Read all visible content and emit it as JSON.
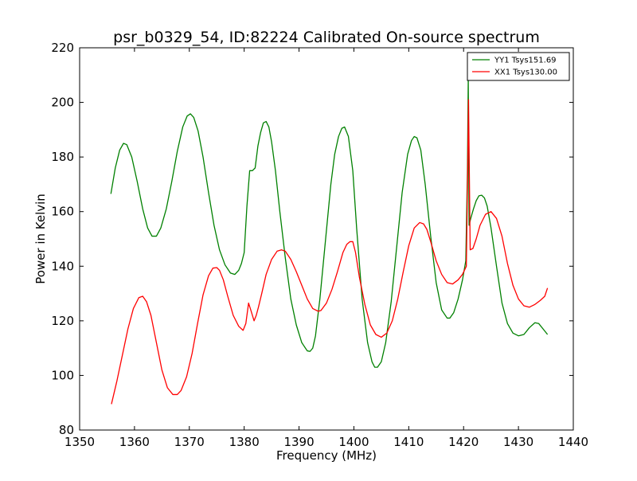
{
  "chart_data": {
    "type": "line",
    "title": "psr_b0329_54, ID:82224 Calibrated On-source spectrum",
    "xlabel": "Frequency (MHz)",
    "ylabel": "Power in Kelvin",
    "xlim": [
      1350,
      1440
    ],
    "ylim": [
      80,
      220
    ],
    "xticks": [
      1350,
      1360,
      1370,
      1380,
      1390,
      1400,
      1410,
      1420,
      1430,
      1440
    ],
    "yticks": [
      80,
      100,
      120,
      140,
      160,
      180,
      200,
      220
    ],
    "grid": false,
    "legend_position": "top-right",
    "series": [
      {
        "name": "YY1 Tsys151.69",
        "color": "#008000",
        "x": [
          1355.7,
          1356.5,
          1357.3,
          1358.0,
          1358.6,
          1359.5,
          1360.5,
          1361.5,
          1362.4,
          1363.2,
          1364.0,
          1364.8,
          1365.8,
          1366.8,
          1367.8,
          1368.8,
          1369.6,
          1370.2,
          1370.8,
          1371.6,
          1372.5,
          1373.5,
          1374.5,
          1375.5,
          1376.5,
          1377.5,
          1378.3,
          1379.0,
          1379.5,
          1380.0,
          1380.5,
          1381.0,
          1381.5,
          1382.0,
          1382.5,
          1383.0,
          1383.5,
          1384.0,
          1384.5,
          1385.0,
          1385.7,
          1386.5,
          1387.5,
          1388.5,
          1389.5,
          1390.5,
          1391.5,
          1392.0,
          1392.5,
          1393.0,
          1393.8,
          1394.8,
          1395.8,
          1396.5,
          1397.2,
          1397.8,
          1398.3,
          1399.0,
          1399.8,
          1400.5,
          1401.5,
          1402.5,
          1403.3,
          1403.8,
          1404.3,
          1405.0,
          1405.8,
          1406.8,
          1407.8,
          1408.8,
          1409.8,
          1410.5,
          1411.0,
          1411.5,
          1412.2,
          1413.0,
          1414.0,
          1415.0,
          1416.0,
          1417.0,
          1417.5,
          1418.2,
          1419.0,
          1419.8,
          1420.4,
          1420.7,
          1420.85,
          1421.0,
          1421.3,
          1421.8,
          1422.3,
          1422.8,
          1423.3,
          1423.8,
          1424.3,
          1425.0,
          1426.0,
          1427.0,
          1428.0,
          1429.0,
          1430.0,
          1431.0,
          1432.0,
          1433.0,
          1433.7,
          1434.5,
          1435.3
        ],
        "values": [
          166.5,
          176.0,
          182.5,
          185.0,
          184.5,
          180.0,
          171.0,
          161.0,
          154.0,
          151.0,
          151.0,
          154.0,
          161.0,
          171.0,
          182.0,
          191.0,
          195.0,
          195.8,
          194.5,
          189.5,
          180.0,
          167.0,
          155.0,
          146.0,
          140.5,
          137.5,
          137.0,
          138.5,
          141.0,
          145.0,
          162.0,
          175.0,
          175.0,
          176.0,
          184.0,
          189.0,
          192.5,
          193.0,
          191.0,
          185.5,
          175.0,
          160.0,
          143.0,
          128.0,
          118.5,
          112.0,
          109.0,
          108.8,
          110.0,
          114.5,
          128.0,
          149.0,
          170.0,
          181.0,
          187.5,
          190.5,
          191.0,
          187.5,
          175.0,
          154.0,
          128.0,
          112.0,
          105.0,
          103.0,
          103.0,
          105.0,
          112.0,
          127.0,
          147.0,
          167.0,
          181.0,
          186.0,
          187.5,
          187.0,
          182.5,
          170.0,
          151.0,
          134.0,
          124.0,
          121.0,
          121.0,
          123.0,
          128.0,
          135.0,
          142.0,
          175.0,
          209.0,
          155.0,
          157.5,
          161.0,
          164.0,
          165.8,
          166.0,
          165.0,
          162.0,
          154.0,
          140.0,
          126.5,
          119.0,
          115.5,
          114.5,
          115.0,
          117.5,
          119.3,
          119.0,
          117.0,
          115.0
        ]
      },
      {
        "name": "XX1 Tsys130.00",
        "color": "#ff0000",
        "x": [
          1355.8,
          1356.8,
          1357.8,
          1358.8,
          1359.8,
          1360.8,
          1361.5,
          1362.2,
          1363.0,
          1364.0,
          1365.0,
          1366.0,
          1367.0,
          1367.8,
          1368.5,
          1369.5,
          1370.5,
          1371.5,
          1372.5,
          1373.5,
          1374.3,
          1375.0,
          1375.5,
          1376.2,
          1377.0,
          1378.0,
          1379.0,
          1379.8,
          1380.3,
          1380.8,
          1381.2,
          1381.8,
          1382.2,
          1382.6,
          1383.2,
          1384.0,
          1385.0,
          1386.0,
          1386.8,
          1387.5,
          1388.5,
          1389.5,
          1390.5,
          1391.5,
          1392.5,
          1393.5,
          1394.0,
          1395.0,
          1396.0,
          1397.0,
          1398.0,
          1398.7,
          1399.3,
          1399.8,
          1400.3,
          1401.0,
          1402.0,
          1403.0,
          1404.0,
          1405.0,
          1406.0,
          1407.0,
          1408.0,
          1409.0,
          1410.0,
          1411.0,
          1412.0,
          1412.7,
          1413.3,
          1414.0,
          1415.0,
          1416.0,
          1417.0,
          1418.0,
          1419.0,
          1419.8,
          1420.5,
          1420.75,
          1420.9,
          1421.2,
          1421.7,
          1422.3,
          1423.0,
          1424.0,
          1425.0,
          1426.0,
          1427.0,
          1428.0,
          1429.0,
          1430.0,
          1431.0,
          1432.0,
          1433.0,
          1434.0,
          1434.8,
          1435.3
        ],
        "values": [
          89.5,
          98.0,
          107.5,
          117.0,
          124.5,
          128.5,
          129.0,
          127.0,
          122.0,
          112.0,
          102.0,
          95.5,
          93.0,
          93.0,
          94.5,
          99.5,
          108.0,
          119.0,
          129.5,
          136.5,
          139.3,
          139.5,
          138.5,
          135.0,
          129.0,
          122.0,
          118.0,
          116.5,
          119.0,
          126.5,
          124.0,
          120.0,
          122.0,
          125.0,
          130.0,
          137.0,
          142.5,
          145.5,
          146.0,
          145.5,
          142.5,
          138.0,
          133.0,
          128.0,
          124.5,
          123.5,
          123.8,
          126.5,
          131.5,
          138.0,
          145.0,
          148.0,
          149.0,
          149.0,
          145.0,
          136.0,
          126.0,
          118.5,
          115.0,
          114.0,
          115.5,
          120.0,
          128.0,
          138.0,
          147.5,
          154.0,
          156.0,
          155.5,
          153.5,
          149.0,
          142.0,
          137.0,
          134.0,
          133.5,
          135.0,
          137.0,
          140.0,
          176.0,
          201.0,
          146.0,
          146.5,
          150.0,
          155.0,
          159.0,
          160.0,
          157.5,
          151.0,
          141.0,
          133.0,
          128.0,
          125.5,
          125.0,
          126.0,
          127.5,
          129.0,
          132.0
        ]
      }
    ]
  }
}
